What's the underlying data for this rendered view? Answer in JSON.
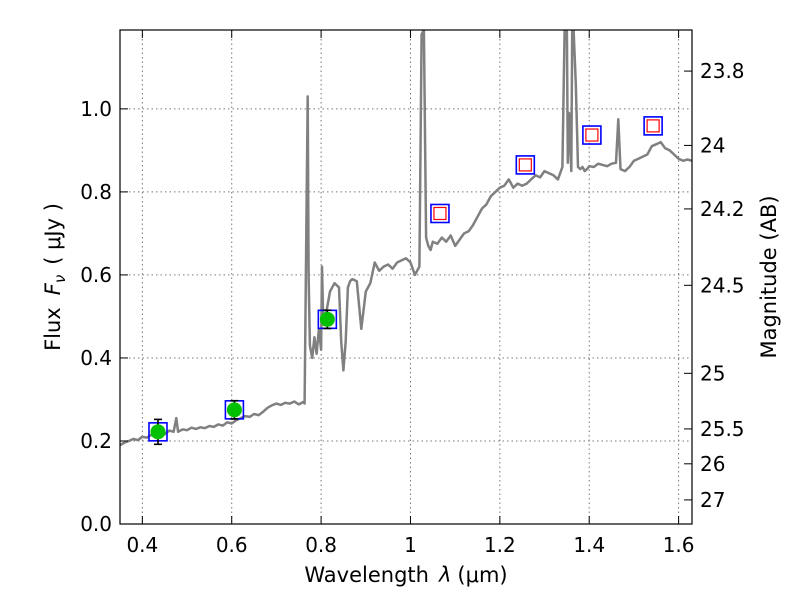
{
  "chart_data": {
    "type": "line",
    "title": "",
    "xlabel_text": "Wavelength",
    "xlabel_symbol": "λ",
    "xlabel_unit": "(μm)",
    "ylabel_text": "Flux",
    "ylabel_symbol": "F",
    "ylabel_subscript": "ν",
    "ylabel_unit": "( μJy )",
    "y2label": "Magnitude (AB)",
    "xlim": [
      0.35,
      1.63
    ],
    "ylim": [
      0.0,
      1.19
    ],
    "grid": true,
    "x_ticks": [
      {
        "value": 0.4,
        "label": "0.4"
      },
      {
        "value": 0.6,
        "label": "0.6"
      },
      {
        "value": 0.8,
        "label": "0.8"
      },
      {
        "value": 1.0,
        "label": "1"
      },
      {
        "value": 1.2,
        "label": "1.2"
      },
      {
        "value": 1.4,
        "label": "1.4"
      },
      {
        "value": 1.6,
        "label": "1.6"
      }
    ],
    "y_ticks": [
      {
        "value": 0.0,
        "label": "0.0"
      },
      {
        "value": 0.2,
        "label": "0.2"
      },
      {
        "value": 0.4,
        "label": "0.4"
      },
      {
        "value": 0.6,
        "label": "0.6"
      },
      {
        "value": 0.8,
        "label": "0.8"
      },
      {
        "value": 1.0,
        "label": "1.0"
      }
    ],
    "mag_ticks": [
      {
        "flux": 1.091,
        "label": "23.8"
      },
      {
        "flux": 0.912,
        "label": "24"
      },
      {
        "flux": 0.759,
        "label": "24.2"
      },
      {
        "flux": 0.575,
        "label": "24.5"
      },
      {
        "flux": 0.363,
        "label": "25"
      },
      {
        "flux": 0.229,
        "label": "25.5"
      },
      {
        "flux": 0.145,
        "label": "26"
      },
      {
        "flux": 0.058,
        "label": "27"
      }
    ],
    "colors": {
      "sed": "#808080",
      "box_edge": "#0000ff",
      "detected_fill": "#00c000",
      "model_square": "#ff0000",
      "errorbar": "#000000",
      "grid": "#777777"
    },
    "sed_model": {
      "name": "SED model",
      "x": [
        0.35,
        0.36,
        0.37,
        0.38,
        0.39,
        0.4,
        0.41,
        0.42,
        0.43,
        0.44,
        0.45,
        0.46,
        0.47,
        0.476,
        0.48,
        0.49,
        0.5,
        0.51,
        0.52,
        0.53,
        0.54,
        0.55,
        0.56,
        0.57,
        0.58,
        0.59,
        0.6,
        0.61,
        0.62,
        0.63,
        0.64,
        0.65,
        0.66,
        0.67,
        0.68,
        0.69,
        0.7,
        0.71,
        0.72,
        0.73,
        0.74,
        0.75,
        0.76,
        0.763,
        0.767,
        0.77,
        0.772,
        0.775,
        0.78,
        0.785,
        0.79,
        0.795,
        0.8,
        0.802,
        0.805,
        0.81,
        0.82,
        0.83,
        0.84,
        0.845,
        0.85,
        0.855,
        0.86,
        0.865,
        0.87,
        0.88,
        0.89,
        0.9,
        0.91,
        0.92,
        0.93,
        0.94,
        0.95,
        0.96,
        0.97,
        0.98,
        0.99,
        1.0,
        1.01,
        1.02,
        1.025,
        1.03,
        1.035,
        1.04,
        1.045,
        1.05,
        1.06,
        1.07,
        1.08,
        1.09,
        1.1,
        1.11,
        1.12,
        1.13,
        1.14,
        1.15,
        1.16,
        1.17,
        1.18,
        1.19,
        1.2,
        1.21,
        1.22,
        1.23,
        1.24,
        1.25,
        1.26,
        1.27,
        1.28,
        1.29,
        1.3,
        1.31,
        1.32,
        1.33,
        1.34,
        1.345,
        1.35,
        1.352,
        1.355,
        1.36,
        1.362,
        1.365,
        1.37,
        1.375,
        1.38,
        1.385,
        1.39,
        1.395,
        1.4,
        1.41,
        1.42,
        1.43,
        1.44,
        1.45,
        1.46,
        1.465,
        1.47,
        1.48,
        1.49,
        1.5,
        1.51,
        1.52,
        1.53,
        1.54,
        1.55,
        1.56,
        1.57,
        1.58,
        1.59,
        1.6,
        1.61,
        1.62,
        1.63
      ],
      "y": [
        0.19,
        0.196,
        0.2,
        0.205,
        0.202,
        0.21,
        0.208,
        0.215,
        0.213,
        0.22,
        0.216,
        0.225,
        0.222,
        0.255,
        0.222,
        0.228,
        0.226,
        0.232,
        0.229,
        0.233,
        0.231,
        0.236,
        0.234,
        0.24,
        0.237,
        0.245,
        0.242,
        0.25,
        0.255,
        0.26,
        0.258,
        0.265,
        0.262,
        0.27,
        0.28,
        0.286,
        0.29,
        0.287,
        0.292,
        0.29,
        0.295,
        0.288,
        0.294,
        0.29,
        0.7,
        1.03,
        0.6,
        0.43,
        0.4,
        0.45,
        0.41,
        0.47,
        0.42,
        0.62,
        0.48,
        0.5,
        0.56,
        0.58,
        0.57,
        0.44,
        0.37,
        0.44,
        0.57,
        0.585,
        0.59,
        0.585,
        0.47,
        0.56,
        0.58,
        0.63,
        0.61,
        0.62,
        0.625,
        0.615,
        0.63,
        0.635,
        0.64,
        0.63,
        0.6,
        0.62,
        1.18,
        1.19,
        0.69,
        0.67,
        0.66,
        0.68,
        0.675,
        0.69,
        0.68,
        0.695,
        0.67,
        0.685,
        0.7,
        0.705,
        0.72,
        0.74,
        0.76,
        0.77,
        0.79,
        0.8,
        0.81,
        0.815,
        0.83,
        0.81,
        0.82,
        0.815,
        0.82,
        0.83,
        0.84,
        0.835,
        0.85,
        0.845,
        0.84,
        0.83,
        0.86,
        1.19,
        1.19,
        0.87,
        0.99,
        0.85,
        1.19,
        1.19,
        1.06,
        0.86,
        0.855,
        0.86,
        0.85,
        0.855,
        0.862,
        0.86,
        0.868,
        0.865,
        0.862,
        0.868,
        0.87,
        0.975,
        0.855,
        0.85,
        0.86,
        0.875,
        0.88,
        0.885,
        0.89,
        0.91,
        0.915,
        0.92,
        0.905,
        0.9,
        0.89,
        0.88,
        0.875,
        0.878,
        0.875
      ]
    },
    "photometry": [
      {
        "x": 0.435,
        "y": 0.222,
        "err": 0.03,
        "detected": true
      },
      {
        "x": 0.606,
        "y": 0.275,
        "err": 0.022,
        "detected": true
      },
      {
        "x": 0.814,
        "y": 0.493,
        "err": 0.022,
        "detected": true
      },
      {
        "x": 1.066,
        "y": 0.748,
        "err": 0.0,
        "detected": false
      },
      {
        "x": 1.257,
        "y": 0.865,
        "err": 0.0,
        "detected": false
      },
      {
        "x": 1.406,
        "y": 0.937,
        "err": 0.0,
        "detected": false
      },
      {
        "x": 1.543,
        "y": 0.959,
        "err": 0.0,
        "detected": false
      }
    ]
  }
}
